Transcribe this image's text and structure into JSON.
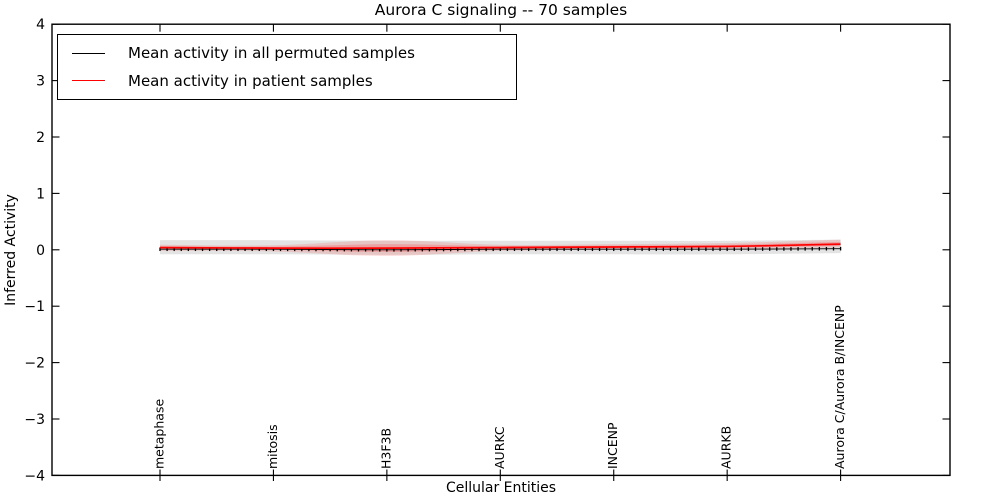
{
  "figure": {
    "background_color": "#ffffff"
  },
  "chart_data": {
    "type": "line",
    "title": "Aurora C signaling -- 70 samples",
    "xlabel": "Cellular Entities",
    "ylabel": "Inferred Activity",
    "ylim": [
      -4,
      4
    ],
    "yticks": [
      4,
      3,
      2,
      1,
      0,
      -1,
      -2,
      -3,
      -4
    ],
    "grid": false,
    "legend_position": "upper left",
    "categories": [
      "metaphase",
      "mitosis",
      "H3F3B",
      "AURKC",
      "INCENP",
      "AURKB",
      "Aurora C/Aurora B/INCENP"
    ],
    "n_points": 97,
    "label_every": 16,
    "series": [
      {
        "name": "Mean activity in all permuted samples",
        "color": "#000000",
        "style": "dashed-with-markers",
        "mean": [
          0.01,
          0.01,
          0.0,
          0.01,
          0.01,
          0.01,
          0.02
        ],
        "band_upper": [
          0.17,
          0.17,
          0.16,
          0.16,
          0.16,
          0.16,
          0.18
        ],
        "band_lower": [
          -0.08,
          -0.08,
          -0.09,
          -0.08,
          -0.08,
          -0.08,
          -0.06
        ],
        "band_color": "rgba(128,128,128,0.22)"
      },
      {
        "name": "Mean activity in patient samples",
        "color": "#ff0000",
        "style": "solid",
        "mean": [
          0.04,
          0.03,
          0.03,
          0.04,
          0.05,
          0.06,
          0.1
        ],
        "band_upper": [
          0.09,
          0.08,
          0.17,
          0.09,
          0.1,
          0.12,
          0.18
        ],
        "band_lower": [
          -0.02,
          -0.03,
          -0.11,
          -0.02,
          0.0,
          0.01,
          0.04
        ],
        "band_color": "rgba(255,0,0,0.13)",
        "inner_band_color": "rgba(255,0,0,0.18)"
      }
    ]
  },
  "legend": {
    "items": [
      {
        "label": "Mean activity in all permuted samples",
        "color": "#000000"
      },
      {
        "label": "Mean activity in patient samples",
        "color": "#ff0000"
      }
    ]
  }
}
